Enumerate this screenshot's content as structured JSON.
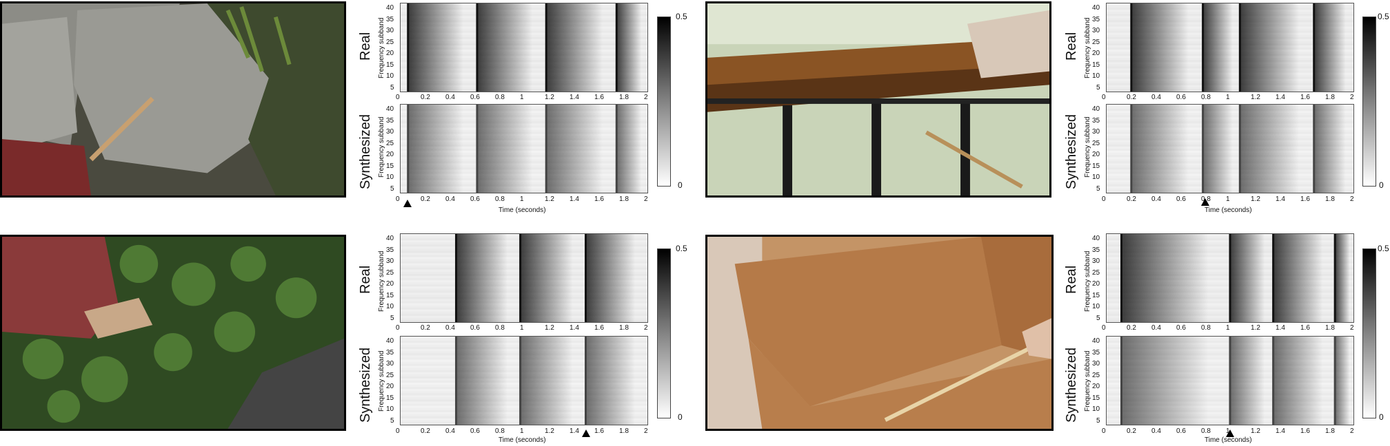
{
  "figure": {
    "row_label_real": "Real",
    "row_label_synth": "Synthesized",
    "y_axis_label": "Frequency subband",
    "x_axis_label": "Time (seconds)",
    "x_ticks": [
      "0",
      "0.2",
      "0.4",
      "0.6",
      "0.8",
      "1",
      "1.2",
      "1.4",
      "1.6",
      "1.8",
      "2"
    ],
    "y_ticks": [
      "40",
      "35",
      "30",
      "25",
      "20",
      "15",
      "10",
      "5"
    ],
    "colorbar": {
      "max": "0.5",
      "min": "0"
    }
  },
  "panels": [
    {
      "scene": "rock",
      "hits": [
        0.06,
        0.62,
        1.18,
        1.75
      ],
      "marker_time": 0.06
    },
    {
      "scene": "railing",
      "hits": [
        0.2,
        0.78,
        1.08,
        1.68
      ],
      "marker_time": 0.8
    },
    {
      "scene": "ivy",
      "hits": [
        0.45,
        0.97,
        1.5
      ],
      "marker_time": 1.5
    },
    {
      "scene": "couch",
      "hits": [
        0.12,
        1.0,
        1.35,
        1.85
      ],
      "marker_time": 1.0
    }
  ],
  "chart_data": {
    "type": "heatmap",
    "x_range": [
      0,
      2
    ],
    "y_range": [
      1,
      42
    ],
    "color_range": [
      0,
      0.5
    ],
    "colorscale": "white-to-black"
  }
}
